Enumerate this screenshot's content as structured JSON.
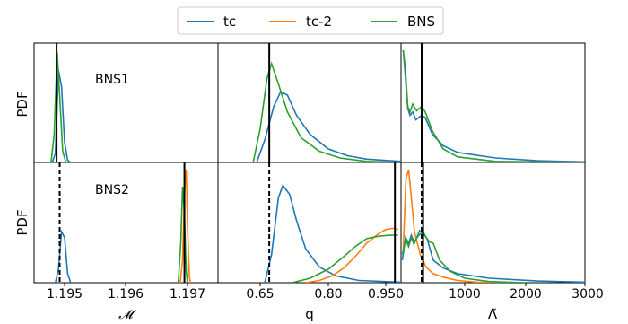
{
  "legend": {
    "entries": [
      {
        "label": "tc",
        "color": "#1f77b4"
      },
      {
        "label": "tc-2",
        "color": "#ff7f0e"
      },
      {
        "label": "BNS",
        "color": "#2ca02c"
      }
    ],
    "placement": "top-center"
  },
  "rows": [
    {
      "ylabel": "PDF",
      "annotation": "BNS1"
    },
    {
      "ylabel": "PDF",
      "annotation": "BNS2"
    }
  ],
  "columns": [
    {
      "xlabel": "𝓜",
      "ticks": [
        "1.195",
        "1.196",
        "1.197"
      ]
    },
    {
      "xlabel": "q",
      "ticks": [
        "0.65",
        "0.80",
        "0.950"
      ]
    },
    {
      "xlabel": "Λ̃",
      "ticks": [
        "1000",
        "2000",
        "3000"
      ]
    }
  ],
  "chart_data": {
    "type": "line",
    "title": "",
    "grid": false,
    "series_names": [
      "tc",
      "tc-2",
      "BNS"
    ],
    "panels": [
      {
        "row": "BNS1",
        "param": "chirp_mass",
        "xlim": [
          1.1945,
          1.1973
        ],
        "true_value": {
          "x": 1.19487,
          "style": "solid"
        },
        "curves": [
          {
            "name": "tc",
            "points": [
              [
                1.1948,
                0
              ],
              [
                1.19485,
                0.08
              ],
              [
                1.1949,
                0.82
              ],
              [
                1.19495,
                0.68
              ],
              [
                1.195,
                0.18
              ],
              [
                1.19505,
                0.02
              ],
              [
                1.1951,
                0
              ]
            ]
          },
          {
            "name": "BNS",
            "points": [
              [
                1.19478,
                0
              ],
              [
                1.19483,
                0.25
              ],
              [
                1.19488,
                0.98
              ],
              [
                1.19492,
                0.6
              ],
              [
                1.19497,
                0.1
              ],
              [
                1.19502,
                0
              ]
            ]
          }
        ]
      },
      {
        "row": "BNS1",
        "param": "q",
        "xlim": [
          0.53,
          1.0
        ],
        "true_value": {
          "x": 0.67,
          "style": "solid"
        },
        "curves": [
          {
            "name": "tc",
            "points": [
              [
                0.64,
                0
              ],
              [
                0.66,
                0.2
              ],
              [
                0.68,
                0.5
              ],
              [
                0.695,
                0.63
              ],
              [
                0.71,
                0.6
              ],
              [
                0.73,
                0.42
              ],
              [
                0.76,
                0.25
              ],
              [
                0.8,
                0.12
              ],
              [
                0.85,
                0.06
              ],
              [
                0.9,
                0.03
              ],
              [
                1.0,
                0.01
              ]
            ]
          },
          {
            "name": "BNS",
            "points": [
              [
                0.63,
                0
              ],
              [
                0.65,
                0.3
              ],
              [
                0.665,
                0.75
              ],
              [
                0.675,
                0.88
              ],
              [
                0.69,
                0.7
              ],
              [
                0.71,
                0.45
              ],
              [
                0.74,
                0.22
              ],
              [
                0.78,
                0.1
              ],
              [
                0.83,
                0.04
              ],
              [
                0.9,
                0.01
              ],
              [
                1.0,
                0
              ]
            ]
          }
        ]
      },
      {
        "row": "BNS1",
        "param": "lambda_tilde",
        "xlim": [
          0,
          3000
        ],
        "true_value": {
          "x": 400,
          "style": "solid"
        },
        "curves": [
          {
            "name": "tc",
            "points": [
              [
                50,
                1.0
              ],
              [
                100,
                0.75
              ],
              [
                150,
                0.48
              ],
              [
                200,
                0.42
              ],
              [
                260,
                0.45
              ],
              [
                320,
                0.38
              ],
              [
                400,
                0.42
              ],
              [
                450,
                0.4
              ],
              [
                550,
                0.25
              ],
              [
                700,
                0.15
              ],
              [
                900,
                0.09
              ],
              [
                1500,
                0.04
              ],
              [
                2200,
                0.015
              ],
              [
                3000,
                0.005
              ]
            ]
          },
          {
            "name": "BNS",
            "points": [
              [
                50,
                1.0
              ],
              [
                100,
                0.82
              ],
              [
                150,
                0.5
              ],
              [
                200,
                0.45
              ],
              [
                260,
                0.52
              ],
              [
                330,
                0.46
              ],
              [
                400,
                0.5
              ],
              [
                450,
                0.45
              ],
              [
                550,
                0.28
              ],
              [
                700,
                0.12
              ],
              [
                900,
                0.05
              ],
              [
                1500,
                0.01
              ],
              [
                3000,
                0
              ]
            ]
          }
        ]
      },
      {
        "row": "BNS2",
        "param": "chirp_mass",
        "xlim": [
          1.1945,
          1.1973
        ],
        "true_value": {
          "x": 1.19492,
          "style": "dashed"
        },
        "true_value_2": {
          "x": 1.19695,
          "style": "solid"
        },
        "curves": [
          {
            "name": "tc",
            "points": [
              [
                1.19485,
                0
              ],
              [
                1.1949,
                0.12
              ],
              [
                1.19495,
                0.45
              ],
              [
                1.195,
                0.4
              ],
              [
                1.19505,
                0.08
              ],
              [
                1.1951,
                0
              ]
            ]
          },
          {
            "name": "tc-2",
            "points": [
              [
                1.19688,
                0
              ],
              [
                1.19692,
                0.2
              ],
              [
                1.19695,
                0.8
              ],
              [
                1.19698,
                1.0
              ],
              [
                1.197,
                0.5
              ],
              [
                1.19703,
                0.05
              ],
              [
                1.19705,
                0
              ]
            ]
          },
          {
            "name": "BNS",
            "points": [
              [
                1.19685,
                0
              ],
              [
                1.19689,
                0.35
              ],
              [
                1.19692,
                0.85
              ],
              [
                1.19695,
                0.6
              ],
              [
                1.19698,
                0.1
              ],
              [
                1.197,
                0
              ]
            ]
          }
        ]
      },
      {
        "row": "BNS2",
        "param": "q",
        "xlim": [
          0.53,
          1.0
        ],
        "true_value": {
          "x": 0.67,
          "style": "dashed"
        },
        "true_value_2": {
          "x": 0.98,
          "style": "solid"
        },
        "curves": [
          {
            "name": "tc",
            "points": [
              [
                0.66,
                0
              ],
              [
                0.675,
                0.25
              ],
              [
                0.69,
                0.75
              ],
              [
                0.7,
                0.86
              ],
              [
                0.715,
                0.78
              ],
              [
                0.73,
                0.55
              ],
              [
                0.75,
                0.3
              ],
              [
                0.78,
                0.14
              ],
              [
                0.82,
                0.06
              ],
              [
                0.88,
                0.02
              ],
              [
                1.0,
                0.005
              ]
            ]
          },
          {
            "name": "tc-2",
            "points": [
              [
                0.75,
                0
              ],
              [
                0.78,
                0.02
              ],
              [
                0.81,
                0.06
              ],
              [
                0.84,
                0.13
              ],
              [
                0.87,
                0.23
              ],
              [
                0.9,
                0.35
              ],
              [
                0.93,
                0.43
              ],
              [
                0.95,
                0.47
              ],
              [
                0.97,
                0.48
              ],
              [
                0.98,
                0.48
              ],
              [
                0.99,
                0.47
              ]
            ]
          },
          {
            "name": "BNS",
            "points": [
              [
                0.72,
                0
              ],
              [
                0.76,
                0.04
              ],
              [
                0.8,
                0.12
              ],
              [
                0.84,
                0.23
              ],
              [
                0.87,
                0.32
              ],
              [
                0.9,
                0.39
              ],
              [
                0.93,
                0.41
              ],
              [
                0.96,
                0.42
              ],
              [
                0.99,
                0.42
              ]
            ]
          }
        ]
      },
      {
        "row": "BNS2",
        "param": "lambda_tilde",
        "xlim": [
          0,
          3000
        ],
        "true_value": {
          "x": 400,
          "style": "dashed"
        },
        "true_value_2": {
          "x": 420,
          "style": "solid"
        },
        "curves": [
          {
            "name": "tc",
            "points": [
              [
                30,
                0.2
              ],
              [
                100,
                0.4
              ],
              [
                170,
                0.35
              ],
              [
                230,
                0.42
              ],
              [
                290,
                0.36
              ],
              [
                360,
                0.42
              ],
              [
                420,
                0.45
              ],
              [
                480,
                0.38
              ],
              [
                560,
                0.2
              ],
              [
                700,
                0.13
              ],
              [
                900,
                0.08
              ],
              [
                1400,
                0.04
              ],
              [
                2200,
                0.015
              ],
              [
                3000,
                0.005
              ]
            ]
          },
          {
            "name": "tc-2",
            "points": [
              [
                50,
                0.3
              ],
              [
                110,
                0.92
              ],
              [
                170,
                1.0
              ],
              [
                230,
                0.75
              ],
              [
                300,
                0.45
              ],
              [
                380,
                0.25
              ],
              [
                460,
                0.14
              ],
              [
                560,
                0.08
              ],
              [
                700,
                0.05
              ],
              [
                900,
                0.02
              ],
              [
                1200,
                0.005
              ],
              [
                1600,
                0
              ]
            ]
          },
          {
            "name": "BNS",
            "points": [
              [
                30,
                0.25
              ],
              [
                100,
                0.38
              ],
              [
                170,
                0.32
              ],
              [
                230,
                0.4
              ],
              [
                290,
                0.34
              ],
              [
                370,
                0.46
              ],
              [
                440,
                0.42
              ],
              [
                510,
                0.36
              ],
              [
                560,
                0.35
              ],
              [
                650,
                0.2
              ],
              [
                800,
                0.1
              ],
              [
                1000,
                0.04
              ],
              [
                1400,
                0.01
              ],
              [
                2000,
                0
              ]
            ]
          }
        ]
      }
    ]
  }
}
